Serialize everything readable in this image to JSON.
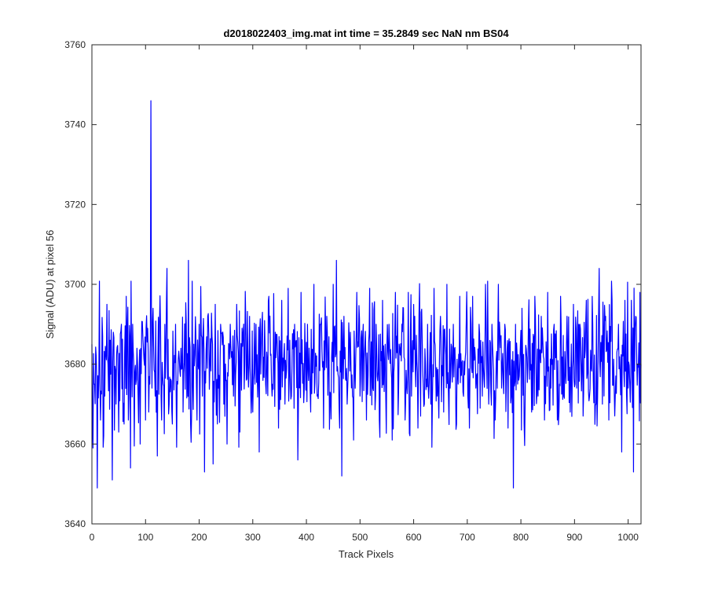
{
  "chart_data": {
    "type": "line",
    "title": "d2018022403_img.mat int time = 35.2849 sec  NaN nm BS04",
    "xlabel": "Track Pixels",
    "ylabel": "Signal (ADU) at pixel 56",
    "xlim": [
      0,
      1024
    ],
    "ylim": [
      3640,
      3760
    ],
    "xticks": [
      0,
      100,
      200,
      300,
      400,
      500,
      600,
      700,
      800,
      900,
      1000
    ],
    "yticks": [
      3640,
      3660,
      3680,
      3700,
      3720,
      3740,
      3760
    ],
    "grid": false,
    "legend": "none",
    "series": [
      {
        "color": "#0000ff",
        "noise": {
          "count": 1024,
          "mean": 3680,
          "sd": 8
        },
        "points": [
          [
            0,
            3685
          ],
          [
            2,
            3659
          ],
          [
            5,
            3675
          ],
          [
            8,
            3682
          ],
          [
            10,
            3649
          ],
          [
            13,
            3678
          ],
          [
            16,
            3666
          ],
          [
            20,
            3687
          ],
          [
            24,
            3672
          ],
          [
            28,
            3695
          ],
          [
            30,
            3680
          ],
          [
            34,
            3686
          ],
          [
            38,
            3651
          ],
          [
            40,
            3688
          ],
          [
            45,
            3670
          ],
          [
            50,
            3663
          ],
          [
            55,
            3690
          ],
          [
            60,
            3665
          ],
          [
            64,
            3697
          ],
          [
            68,
            3666
          ],
          [
            72,
            3654
          ],
          [
            76,
            3690
          ],
          [
            80,
            3678
          ],
          [
            84,
            3684
          ],
          [
            90,
            3660
          ],
          [
            95,
            3687
          ],
          [
            100,
            3666
          ],
          [
            104,
            3689
          ],
          [
            108,
            3675
          ],
          [
            110,
            3746
          ],
          [
            112,
            3674
          ],
          [
            114,
            3694
          ],
          [
            118,
            3672
          ],
          [
            122,
            3657
          ],
          [
            126,
            3690
          ],
          [
            130,
            3666
          ],
          [
            136,
            3690
          ],
          [
            140,
            3704
          ],
          [
            144,
            3670
          ],
          [
            150,
            3665
          ],
          [
            156,
            3690
          ],
          [
            160,
            3675
          ],
          [
            166,
            3684
          ],
          [
            170,
            3668
          ],
          [
            176,
            3690
          ],
          [
            180,
            3706
          ],
          [
            186,
            3668
          ],
          [
            190,
            3685
          ],
          [
            196,
            3666
          ],
          [
            200,
            3690
          ],
          [
            206,
            3672
          ],
          [
            210,
            3653
          ],
          [
            216,
            3692
          ],
          [
            220,
            3680
          ],
          [
            226,
            3655
          ],
          [
            230,
            3695
          ],
          [
            236,
            3674
          ],
          [
            240,
            3690
          ],
          [
            246,
            3670
          ],
          [
            252,
            3660
          ],
          [
            258,
            3690
          ],
          [
            264,
            3672
          ],
          [
            270,
            3695
          ],
          [
            276,
            3663
          ],
          [
            282,
            3688
          ],
          [
            288,
            3676
          ],
          [
            294,
            3692
          ],
          [
            300,
            3668
          ],
          [
            306,
            3690
          ],
          [
            312,
            3658
          ],
          [
            318,
            3693
          ],
          [
            324,
            3675
          ],
          [
            330,
            3697
          ],
          [
            336,
            3672
          ],
          [
            342,
            3688
          ],
          [
            348,
            3664
          ],
          [
            354,
            3696
          ],
          [
            360,
            3670
          ],
          [
            366,
            3699
          ],
          [
            372,
            3672
          ],
          [
            378,
            3690
          ],
          [
            384,
            3656
          ],
          [
            390,
            3698
          ],
          [
            396,
            3674
          ],
          [
            402,
            3690
          ],
          [
            408,
            3668
          ],
          [
            414,
            3700
          ],
          [
            420,
            3672
          ],
          [
            426,
            3690
          ],
          [
            432,
            3664
          ],
          [
            438,
            3692
          ],
          [
            444,
            3673
          ],
          [
            450,
            3700
          ],
          [
            456,
            3706
          ],
          [
            462,
            3664
          ],
          [
            466,
            3652
          ],
          [
            470,
            3692
          ],
          [
            476,
            3670
          ],
          [
            482,
            3688
          ],
          [
            488,
            3661
          ],
          [
            494,
            3698
          ],
          [
            500,
            3672
          ],
          [
            506,
            3690
          ],
          [
            512,
            3666
          ],
          [
            518,
            3699
          ],
          [
            524,
            3674
          ],
          [
            530,
            3690
          ],
          [
            536,
            3666
          ],
          [
            542,
            3696
          ],
          [
            548,
            3672
          ],
          [
            554,
            3690
          ],
          [
            560,
            3661
          ],
          [
            566,
            3698
          ],
          [
            572,
            3674
          ],
          [
            578,
            3690
          ],
          [
            584,
            3666
          ],
          [
            590,
            3698
          ],
          [
            596,
            3672
          ],
          [
            602,
            3692
          ],
          [
            608,
            3664
          ],
          [
            614,
            3693
          ],
          [
            620,
            3670
          ],
          [
            626,
            3690
          ],
          [
            632,
            3670
          ],
          [
            638,
            3699
          ],
          [
            644,
            3672
          ],
          [
            650,
            3692
          ],
          [
            656,
            3668
          ],
          [
            662,
            3700
          ],
          [
            668,
            3674
          ],
          [
            674,
            3690
          ],
          [
            680,
            3665
          ],
          [
            686,
            3697
          ],
          [
            692,
            3673
          ],
          [
            698,
            3690
          ],
          [
            704,
            3664
          ],
          [
            710,
            3697
          ],
          [
            716,
            3674
          ],
          [
            722,
            3690
          ],
          [
            728,
            3672
          ],
          [
            734,
            3700
          ],
          [
            740,
            3670
          ],
          [
            746,
            3690
          ],
          [
            752,
            3666
          ],
          [
            758,
            3700
          ],
          [
            764,
            3674
          ],
          [
            770,
            3690
          ],
          [
            776,
            3664
          ],
          [
            782,
            3672
          ],
          [
            786,
            3649
          ],
          [
            790,
            3690
          ],
          [
            796,
            3676
          ],
          [
            802,
            3694
          ],
          [
            808,
            3672
          ],
          [
            814,
            3690
          ],
          [
            820,
            3668
          ],
          [
            826,
            3697
          ],
          [
            832,
            3672
          ],
          [
            838,
            3692
          ],
          [
            844,
            3666
          ],
          [
            850,
            3698
          ],
          [
            856,
            3674
          ],
          [
            862,
            3690
          ],
          [
            868,
            3666
          ],
          [
            874,
            3697
          ],
          [
            880,
            3672
          ],
          [
            886,
            3692
          ],
          [
            892,
            3668
          ],
          [
            898,
            3695
          ],
          [
            904,
            3674
          ],
          [
            910,
            3690
          ],
          [
            916,
            3667
          ],
          [
            922,
            3696
          ],
          [
            928,
            3672
          ],
          [
            934,
            3690
          ],
          [
            940,
            3670
          ],
          [
            946,
            3704
          ],
          [
            952,
            3670
          ],
          [
            958,
            3692
          ],
          [
            964,
            3666
          ],
          [
            970,
            3696
          ],
          [
            976,
            3672
          ],
          [
            982,
            3690
          ],
          [
            988,
            3658
          ],
          [
            994,
            3696
          ],
          [
            1000,
            3674
          ],
          [
            1006,
            3696
          ],
          [
            1010,
            3653
          ],
          [
            1014,
            3692
          ],
          [
            1018,
            3680
          ],
          [
            1022,
            3698
          ],
          [
            1024,
            3680
          ]
        ]
      }
    ]
  }
}
